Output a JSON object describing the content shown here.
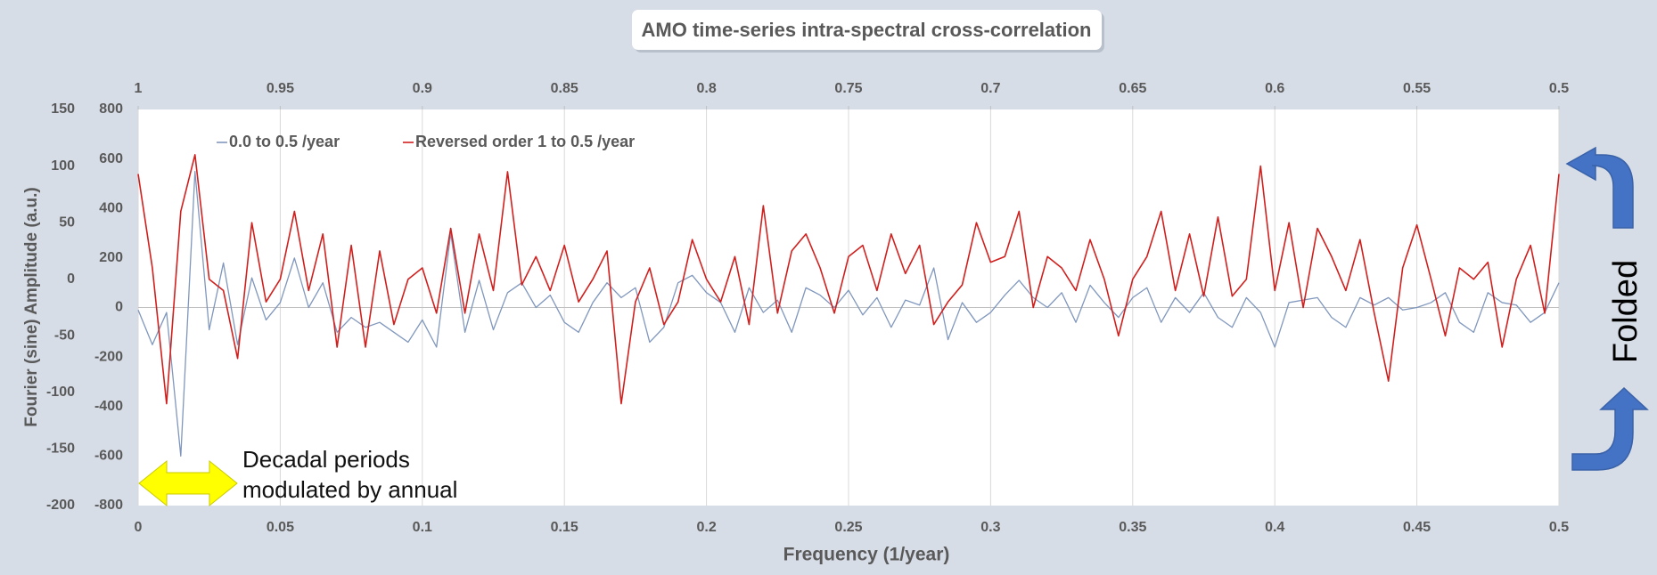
{
  "chart_data": {
    "type": "line",
    "title": "AMO time-series intra-spectral cross-correlation",
    "x_label": "Frequency (1/year)",
    "y_label": "Fourier (sine) Amplitude (a.u.)",
    "annotations": [
      "Decadal periods",
      "modulated by annual"
    ],
    "side_label": "Folded",
    "x": [
      0,
      0.005,
      0.01,
      0.015,
      0.02,
      0.025,
      0.03,
      0.035,
      0.04,
      0.045,
      0.05,
      0.055,
      0.06,
      0.065,
      0.07,
      0.075,
      0.08,
      0.085,
      0.09,
      0.095,
      0.1,
      0.105,
      0.11,
      0.115,
      0.12,
      0.125,
      0.13,
      0.135,
      0.14,
      0.145,
      0.15,
      0.155,
      0.16,
      0.165,
      0.17,
      0.175,
      0.18,
      0.185,
      0.19,
      0.195,
      0.2,
      0.205,
      0.21,
      0.215,
      0.22,
      0.225,
      0.23,
      0.235,
      0.24,
      0.245,
      0.25,
      0.255,
      0.26,
      0.265,
      0.27,
      0.275,
      0.28,
      0.285,
      0.29,
      0.295,
      0.3,
      0.305,
      0.31,
      0.315,
      0.32,
      0.325,
      0.33,
      0.335,
      0.34,
      0.345,
      0.35,
      0.355,
      0.36,
      0.365,
      0.37,
      0.375,
      0.38,
      0.385,
      0.39,
      0.395,
      0.4,
      0.405,
      0.41,
      0.415,
      0.42,
      0.425,
      0.43,
      0.435,
      0.44,
      0.445,
      0.45,
      0.455,
      0.46,
      0.465,
      0.47,
      0.475,
      0.48,
      0.485,
      0.49,
      0.495,
      0.5
    ],
    "xlim": [
      0,
      0.5
    ],
    "xticks": [
      0,
      0.05,
      0.1,
      0.15,
      0.2,
      0.25,
      0.3,
      0.35,
      0.4,
      0.45,
      0.5
    ],
    "x2lim": [
      1,
      0.5
    ],
    "x2ticks": [
      1,
      0.95,
      0.9,
      0.85,
      0.8,
      0.75,
      0.7,
      0.65,
      0.6,
      0.55,
      0.5
    ],
    "ylim": [
      -200,
      150
    ],
    "yticks": [
      150,
      100,
      50,
      0,
      -50,
      -100,
      -150,
      -200
    ],
    "y2lim": [
      -800,
      800
    ],
    "y2ticks": [
      800,
      600,
      400,
      200,
      0,
      -200,
      -400,
      -600,
      -800
    ],
    "grid": true,
    "series": [
      {
        "name": "0.0 to 0.5 /year",
        "color": "#8097bd",
        "axis": "y2",
        "values": [
          -10,
          -150,
          -20,
          -600,
          550,
          -90,
          180,
          -150,
          120,
          -50,
          20,
          200,
          0,
          100,
          -100,
          -40,
          -80,
          -60,
          -100,
          -140,
          -50,
          -160,
          300,
          -100,
          110,
          -90,
          60,
          100,
          0,
          50,
          -60,
          -100,
          20,
          100,
          40,
          80,
          -140,
          -80,
          100,
          130,
          60,
          20,
          -100,
          80,
          -20,
          30,
          -100,
          80,
          50,
          0,
          70,
          -30,
          40,
          -80,
          30,
          10,
          160,
          -130,
          20,
          -60,
          -20,
          50,
          110,
          40,
          0,
          60,
          -60,
          90,
          20,
          -40,
          40,
          80,
          -60,
          40,
          -20,
          60,
          -40,
          -80,
          40,
          -20,
          -160,
          20,
          30,
          40,
          -40,
          -80,
          40,
          10,
          40,
          -10,
          0,
          20,
          60,
          -60,
          -100,
          60,
          20,
          10,
          -60,
          -20,
          100
        ]
      },
      {
        "name": "Reversed order 1 to 0.5 /year",
        "color": "#d0201e",
        "axis": "y",
        "values": [
          93,
          10,
          -110,
          60,
          110,
          0,
          -10,
          -70,
          50,
          -20,
          0,
          60,
          -10,
          40,
          -60,
          30,
          -60,
          25,
          -40,
          0,
          10,
          -30,
          45,
          -30,
          40,
          -10,
          95,
          -5,
          20,
          -10,
          30,
          -20,
          0,
          25,
          -110,
          -20,
          10,
          -40,
          -20,
          35,
          0,
          -20,
          20,
          -40,
          65,
          -30,
          25,
          40,
          10,
          -30,
          20,
          30,
          -10,
          40,
          5,
          30,
          -40,
          -20,
          -5,
          50,
          15,
          20,
          60,
          -25,
          20,
          10,
          -10,
          35,
          0,
          -50,
          0,
          20,
          60,
          -10,
          40,
          -15,
          55,
          -15,
          0,
          100,
          -10,
          50,
          -25,
          45,
          20,
          -10,
          35,
          -30,
          -90,
          10,
          48,
          0,
          -50,
          10,
          0,
          15,
          -60,
          0,
          30,
          -30,
          93
        ]
      }
    ]
  }
}
